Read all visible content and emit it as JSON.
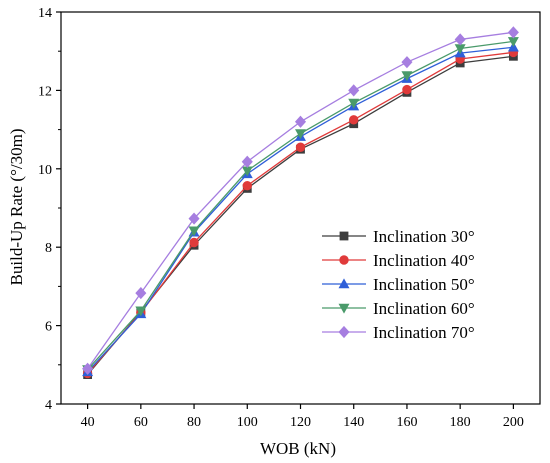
{
  "chart_data": {
    "type": "line",
    "title": "",
    "xlabel": "WOB (kN)",
    "ylabel": "Build-Up Rate (°/30m)",
    "x": [
      40,
      60,
      80,
      100,
      120,
      140,
      160,
      180,
      200
    ],
    "xlim": [
      30,
      210
    ],
    "ylim": [
      4,
      14
    ],
    "xticks": [
      "40",
      "60",
      "80",
      "100",
      "120",
      "140",
      "160",
      "180",
      "200"
    ],
    "yticks": [
      "4",
      "6",
      "8",
      "10",
      "12",
      "14"
    ],
    "grid": false,
    "legend_position": "center-right",
    "series": [
      {
        "name": "Inclination 30°",
        "color": "#3d3d3d",
        "marker": "square",
        "values": [
          4.75,
          6.35,
          8.05,
          9.5,
          10.5,
          11.15,
          11.95,
          12.7,
          12.87
        ]
      },
      {
        "name": "Inclination 40°",
        "color": "#e03a3a",
        "marker": "circle",
        "values": [
          4.78,
          6.33,
          8.12,
          9.57,
          10.55,
          11.25,
          12.02,
          12.8,
          12.97
        ]
      },
      {
        "name": "Inclination 50°",
        "color": "#2f5fd8",
        "marker": "triangle-up",
        "values": [
          4.82,
          6.3,
          8.38,
          9.87,
          10.82,
          11.6,
          12.3,
          12.95,
          13.1
        ]
      },
      {
        "name": "Inclination 60°",
        "color": "#4a9a6a",
        "marker": "triangle-down",
        "values": [
          4.88,
          6.38,
          8.42,
          9.95,
          10.9,
          11.68,
          12.38,
          13.07,
          13.25
        ]
      },
      {
        "name": "Inclination 70°",
        "color": "#a67ee0",
        "marker": "diamond",
        "values": [
          4.9,
          6.83,
          8.73,
          10.18,
          11.2,
          12.0,
          12.72,
          13.3,
          13.48
        ]
      }
    ]
  }
}
